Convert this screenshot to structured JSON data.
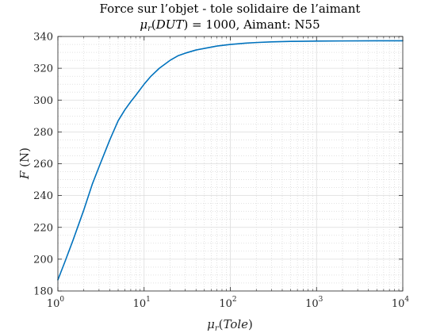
{
  "chart_data": {
    "type": "line",
    "title": "Force sur l’objet - tole solidaire de l’aimant",
    "subtitle": {
      "mu": "μ",
      "mu_sub": "r",
      "paren_open": "(",
      "var": "DUT",
      "rest": ") = 1000, Aimant: N55"
    },
    "xlabel": {
      "mu": "μ",
      "mu_sub": "r",
      "paren_open": "(",
      "var": "Tole",
      "paren_close": ")"
    },
    "ylabel": {
      "var": "F",
      "unit": " (N)"
    },
    "xscale": "log",
    "xlim": [
      1,
      10000
    ],
    "ylim": [
      180,
      340
    ],
    "grid": true,
    "minor_grid": true,
    "x_ticks": [
      {
        "value": 1,
        "base": "10",
        "exp": "0"
      },
      {
        "value": 10,
        "base": "10",
        "exp": "1"
      },
      {
        "value": 100,
        "base": "10",
        "exp": "2"
      },
      {
        "value": 1000,
        "base": "10",
        "exp": "3"
      },
      {
        "value": 10000,
        "base": "10",
        "exp": "4"
      }
    ],
    "y_ticks": [
      180,
      200,
      220,
      240,
      260,
      280,
      300,
      320,
      340
    ],
    "color": "#0072bd",
    "series": [
      {
        "x": [
          1,
          1.2,
          1.5,
          2,
          2.5,
          3,
          4,
          5,
          6,
          7,
          8,
          10,
          12,
          15,
          20,
          25,
          30,
          40,
          50,
          70,
          100,
          150,
          200,
          300,
          500,
          1000,
          2000,
          5000,
          10000
        ],
        "y": [
          187,
          198,
          212,
          231,
          247,
          258,
          275,
          287,
          294,
          299,
          303,
          310,
          315,
          320,
          325,
          328,
          329.5,
          331.5,
          332.5,
          334,
          335,
          335.8,
          336.2,
          336.6,
          336.9,
          337.1,
          337.2,
          337.3,
          337.3
        ]
      }
    ]
  }
}
